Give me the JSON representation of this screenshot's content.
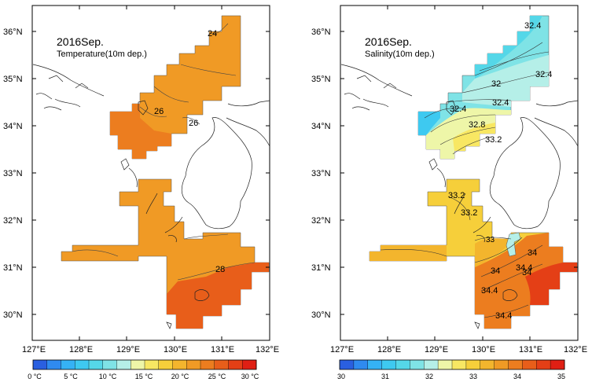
{
  "panels": [
    {
      "id": "temperature",
      "title": "2016Sep.",
      "subtitle": "Temperature(10m dep.)",
      "contour_labels": [
        "24",
        "26",
        "26",
        "28"
      ],
      "colorbar": {
        "colors": [
          "#2a5fe0",
          "#2f8af0",
          "#35b2f5",
          "#3ec9f0",
          "#55d7e8",
          "#7fe3e6",
          "#b5efe8",
          "#eef6a8",
          "#f8e763",
          "#f6cf3a",
          "#f3b52d",
          "#f09a25",
          "#ec7d1f",
          "#e85e1a",
          "#e43f16",
          "#e01f14"
        ],
        "tick_labels": [
          "0 °C",
          "5 °C",
          "10 °C",
          "15 °C",
          "20 °C",
          "25 °C",
          "30 °C"
        ]
      }
    },
    {
      "id": "salinity",
      "title": "2016Sep.",
      "subtitle": "Salinity(10m dep.)",
      "contour_labels": [
        "32.4",
        "32",
        "32.4",
        "32.4",
        "32.4",
        "32.8",
        "33.2",
        "33.2",
        "33.2",
        "33",
        "34",
        "34",
        "34",
        "34.4",
        "34.4",
        "34.4"
      ],
      "colorbar": {
        "colors": [
          "#2a5fe0",
          "#2f8af0",
          "#35b2f5",
          "#3ec9f0",
          "#55d7e8",
          "#7fe3e6",
          "#b5efe8",
          "#eef6a8",
          "#f8e763",
          "#f6cf3a",
          "#f3b52d",
          "#f09a25",
          "#ec7d1f",
          "#e85e1a",
          "#e43f16",
          "#e01f14"
        ],
        "tick_labels": [
          "30",
          "31",
          "32",
          "33",
          "34",
          "35"
        ]
      }
    }
  ],
  "axes": {
    "lat_labels": [
      "36°N",
      "35°N",
      "34°N",
      "33°N",
      "32°N",
      "31°N",
      "30°N"
    ],
    "lon_labels": [
      "127°E",
      "128°E",
      "129°E",
      "130°E",
      "131°E",
      "132°E"
    ]
  }
}
